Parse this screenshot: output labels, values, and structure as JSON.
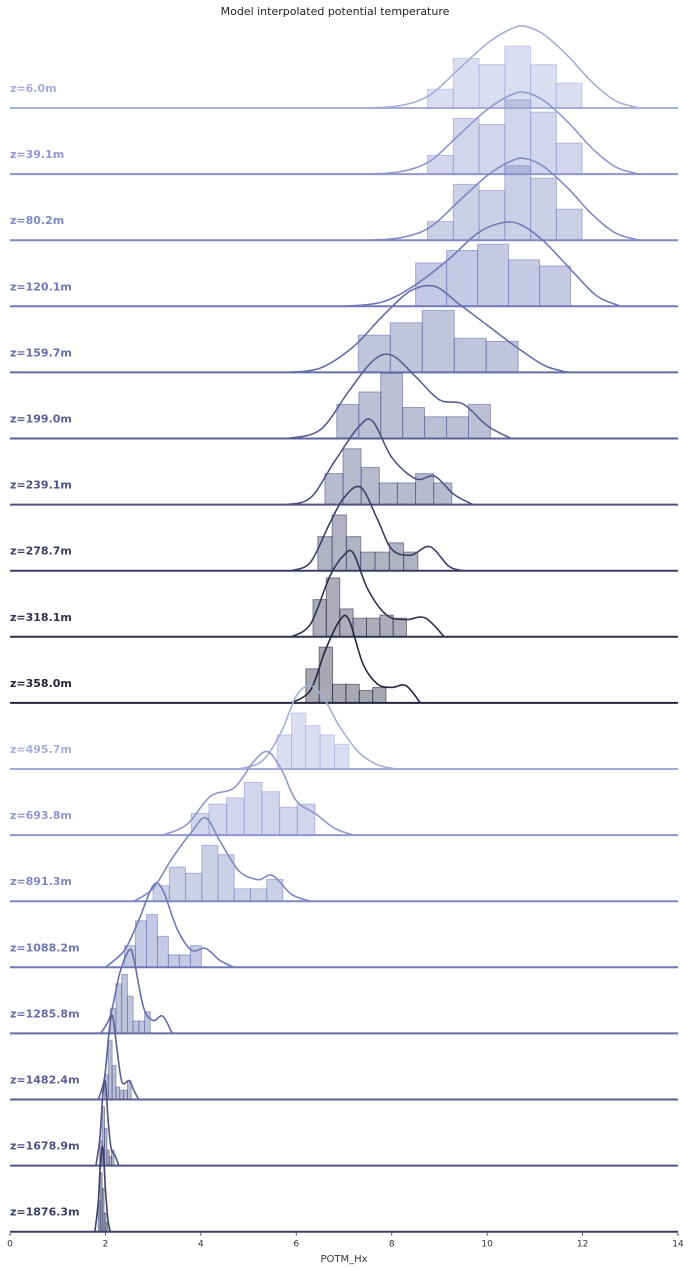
{
  "chart_data": {
    "type": "ridgeline-histogram",
    "title": "Model interpolated potential temperature",
    "xlabel": "POTM_Hx",
    "ylabel": "",
    "xlim": [
      0,
      14
    ],
    "xticks": [
      "0",
      "2",
      "4",
      "6",
      "8",
      "10",
      "12",
      "14"
    ],
    "grid": false,
    "rows": [
      {
        "label": "z=6.0m",
        "color": "#a6add9",
        "bin_start": 8.75,
        "bin_width": 0.54,
        "counts": [
          0.3,
          0.8,
          0.7,
          1.0,
          0.7,
          0.4
        ],
        "kde_x": [
          7.5,
          8.2,
          8.8,
          9.4,
          10.0,
          10.5,
          10.8,
          11.2,
          11.7,
          12.2,
          12.7,
          13.2
        ],
        "kde_y": [
          0.0,
          0.03,
          0.15,
          0.45,
          0.75,
          0.92,
          0.95,
          0.85,
          0.6,
          0.3,
          0.08,
          0.0
        ]
      },
      {
        "label": "z=39.1m",
        "color": "#8f97cd",
        "bin_start": 8.75,
        "bin_width": 0.54,
        "counts": [
          0.3,
          0.9,
          0.8,
          1.2,
          1.0,
          0.5
        ],
        "kde_x": [
          7.5,
          8.2,
          8.8,
          9.4,
          10.0,
          10.5,
          10.8,
          11.2,
          11.7,
          12.2,
          12.7,
          13.2
        ],
        "kde_y": [
          0.0,
          0.03,
          0.15,
          0.45,
          0.75,
          0.92,
          0.95,
          0.85,
          0.6,
          0.3,
          0.08,
          0.0
        ]
      },
      {
        "label": "z=80.2m",
        "color": "#8089c2",
        "bin_start": 8.75,
        "bin_width": 0.54,
        "counts": [
          0.3,
          0.9,
          0.8,
          1.2,
          1.0,
          0.5
        ],
        "kde_x": [
          7.5,
          8.2,
          8.8,
          9.4,
          10.0,
          10.5,
          10.8,
          11.2,
          11.7,
          12.2,
          12.7,
          13.2
        ],
        "kde_y": [
          0.0,
          0.03,
          0.15,
          0.45,
          0.75,
          0.92,
          0.95,
          0.85,
          0.6,
          0.3,
          0.08,
          0.0
        ]
      },
      {
        "label": "z=120.1m",
        "color": "#7079b8",
        "bin_start": 8.5,
        "bin_width": 0.65,
        "counts": [
          0.7,
          0.9,
          1.0,
          0.75,
          0.65
        ],
        "kde_x": [
          7.0,
          7.8,
          8.5,
          9.2,
          9.8,
          10.3,
          10.7,
          11.2,
          11.8,
          12.3,
          12.8
        ],
        "kde_y": [
          0.0,
          0.05,
          0.25,
          0.55,
          0.85,
          0.97,
          0.95,
          0.75,
          0.4,
          0.12,
          0.0
        ]
      },
      {
        "label": "z=159.7m",
        "color": "#656ea8",
        "bin_start": 7.3,
        "bin_width": 0.67,
        "counts": [
          0.6,
          0.8,
          1.0,
          0.55,
          0.5
        ],
        "kde_x": [
          5.8,
          6.5,
          7.2,
          7.8,
          8.4,
          8.9,
          9.4,
          10.0,
          10.6,
          11.2,
          11.7
        ],
        "kde_y": [
          0.0,
          0.05,
          0.3,
          0.65,
          0.95,
          1.0,
          0.8,
          0.55,
          0.3,
          0.08,
          0.0
        ]
      },
      {
        "label": "z=199.0m",
        "color": "#5a6096",
        "bin_start": 6.85,
        "bin_width": 0.46,
        "counts": [
          0.55,
          0.75,
          1.05,
          0.5,
          0.35,
          0.35,
          0.55
        ],
        "kde_x": [
          5.8,
          6.5,
          7.1,
          7.6,
          8.0,
          8.5,
          9.0,
          9.5,
          10.0,
          10.5
        ],
        "kde_y": [
          0.0,
          0.1,
          0.55,
          0.9,
          0.97,
          0.72,
          0.45,
          0.4,
          0.15,
          0.0
        ]
      },
      {
        "label": "z=239.1m",
        "color": "#4d5283",
        "bin_start": 6.6,
        "bin_width": 0.38,
        "counts": [
          0.5,
          0.9,
          0.6,
          0.35,
          0.35,
          0.5,
          0.35
        ],
        "kde_x": [
          5.8,
          6.3,
          6.8,
          7.3,
          7.6,
          8.0,
          8.5,
          8.9,
          9.3,
          9.7
        ],
        "kde_y": [
          0.0,
          0.08,
          0.5,
          0.9,
          0.97,
          0.55,
          0.3,
          0.33,
          0.12,
          0.0
        ]
      },
      {
        "label": "z=278.7m",
        "color": "#3c4066",
        "bin_start": 6.45,
        "bin_width": 0.3,
        "counts": [
          0.55,
          0.9,
          0.55,
          0.3,
          0.3,
          0.45,
          0.3
        ],
        "kde_x": [
          5.9,
          6.3,
          6.7,
          7.0,
          7.35,
          7.7,
          8.0,
          8.4,
          8.8,
          9.2,
          9.5
        ],
        "kde_y": [
          0.0,
          0.1,
          0.55,
          0.85,
          0.97,
          0.6,
          0.25,
          0.18,
          0.28,
          0.05,
          0.0
        ]
      },
      {
        "label": "z=318.1m",
        "color": "#2f3350",
        "bin_start": 6.35,
        "bin_width": 0.28,
        "counts": [
          0.6,
          0.95,
          0.45,
          0.3,
          0.3,
          0.35,
          0.3
        ],
        "kde_x": [
          5.9,
          6.3,
          6.7,
          7.0,
          7.2,
          7.5,
          7.9,
          8.3,
          8.7,
          9.1
        ],
        "kde_y": [
          0.0,
          0.15,
          0.7,
          0.95,
          0.97,
          0.55,
          0.25,
          0.2,
          0.22,
          0.0
        ]
      },
      {
        "label": "z=358.0m",
        "color": "#23263e",
        "bin_start": 6.2,
        "bin_width": 0.28,
        "counts": [
          0.55,
          0.9,
          0.3,
          0.3,
          0.2,
          0.25
        ],
        "kde_x": [
          5.9,
          6.3,
          6.6,
          6.9,
          7.1,
          7.4,
          7.7,
          8.0,
          8.3,
          8.6
        ],
        "kde_y": [
          0.0,
          0.15,
          0.6,
          0.95,
          0.97,
          0.45,
          0.22,
          0.18,
          0.2,
          0.0
        ]
      },
      {
        "label": "z=495.7m",
        "color": "#a6add9",
        "bin_start": 5.6,
        "bin_width": 0.3,
        "counts": [
          0.55,
          0.9,
          0.7,
          0.55,
          0.4
        ],
        "kde_x": [
          4.8,
          5.3,
          5.7,
          6.0,
          6.3,
          6.6,
          6.9,
          7.3,
          7.7,
          8.1
        ],
        "kde_y": [
          0.0,
          0.1,
          0.45,
          0.85,
          0.97,
          0.8,
          0.5,
          0.2,
          0.05,
          0.0
        ]
      },
      {
        "label": "z=693.8m",
        "color": "#8f97cd",
        "bin_start": 3.8,
        "bin_width": 0.37,
        "counts": [
          0.35,
          0.5,
          0.6,
          0.85,
          0.7,
          0.45,
          0.5
        ],
        "kde_x": [
          3.2,
          3.7,
          4.2,
          4.7,
          5.1,
          5.4,
          5.7,
          6.0,
          6.4,
          6.8,
          7.2
        ],
        "kde_y": [
          0.0,
          0.12,
          0.45,
          0.55,
          0.85,
          0.97,
          0.75,
          0.4,
          0.25,
          0.08,
          0.0
        ]
      },
      {
        "label": "z=891.3m",
        "color": "#8089c2",
        "bin_start": 3.0,
        "bin_width": 0.34,
        "counts": [
          0.25,
          0.55,
          0.45,
          0.9,
          0.75,
          0.2,
          0.2,
          0.35
        ],
        "kde_x": [
          2.6,
          3.0,
          3.4,
          3.8,
          4.1,
          4.4,
          4.8,
          5.2,
          5.5,
          5.9,
          6.3
        ],
        "kde_y": [
          0.0,
          0.15,
          0.5,
          0.8,
          0.97,
          0.7,
          0.35,
          0.25,
          0.3,
          0.08,
          0.0
        ]
      },
      {
        "label": "z=1088.2m",
        "color": "#7079b8",
        "bin_start": 2.4,
        "bin_width": 0.23,
        "counts": [
          0.35,
          0.75,
          0.85,
          0.5,
          0.2,
          0.2,
          0.35
        ],
        "kde_x": [
          2.0,
          2.4,
          2.7,
          3.0,
          3.2,
          3.5,
          3.8,
          4.1,
          4.4,
          4.7
        ],
        "kde_y": [
          0.0,
          0.2,
          0.55,
          0.95,
          0.9,
          0.45,
          0.2,
          0.22,
          0.08,
          0.0
        ]
      },
      {
        "label": "z=1285.8m",
        "color": "#656ea8",
        "bin_start": 2.1,
        "bin_width": 0.12,
        "counts": [
          0.4,
          0.8,
          0.95,
          0.6,
          0.2,
          0.2,
          0.35
        ],
        "kde_x": [
          1.9,
          2.1,
          2.3,
          2.5,
          2.6,
          2.8,
          3.0,
          3.2,
          3.4
        ],
        "kde_y": [
          0.0,
          0.2,
          0.7,
          0.97,
          0.85,
          0.3,
          0.15,
          0.2,
          0.0
        ]
      },
      {
        "label": "z=1482.4m",
        "color": "#5a6096",
        "bin_start": 1.98,
        "bin_width": 0.08,
        "counts": [
          0.4,
          0.95,
          0.55,
          0.2,
          0.15,
          0.15,
          0.3
        ],
        "kde_x": [
          1.85,
          1.98,
          2.08,
          2.15,
          2.25,
          2.35,
          2.5,
          2.6,
          2.7
        ],
        "kde_y": [
          0.0,
          0.25,
          0.8,
          0.97,
          0.55,
          0.2,
          0.22,
          0.1,
          0.0
        ]
      },
      {
        "label": "z=1678.9m",
        "color": "#4d5283",
        "bin_start": 1.88,
        "bin_width": 0.05,
        "counts": [
          0.4,
          0.95,
          0.6,
          0.25,
          0.15,
          0.25
        ],
        "kde_x": [
          1.8,
          1.88,
          1.95,
          2.0,
          2.06,
          2.12,
          2.2,
          2.28
        ],
        "kde_y": [
          0.0,
          0.3,
          0.85,
          0.97,
          0.5,
          0.2,
          0.12,
          0.0
        ]
      },
      {
        "label": "z=1876.3m",
        "color": "#3c4066",
        "bin_start": 1.85,
        "bin_width": 0.04,
        "counts": [
          0.5,
          0.95,
          0.7,
          0.3,
          0.15
        ],
        "kde_x": [
          1.78,
          1.85,
          1.9,
          1.95,
          2.0,
          2.05,
          2.1
        ],
        "kde_y": [
          0.0,
          0.35,
          0.85,
          0.97,
          0.5,
          0.15,
          0.0
        ]
      }
    ]
  }
}
